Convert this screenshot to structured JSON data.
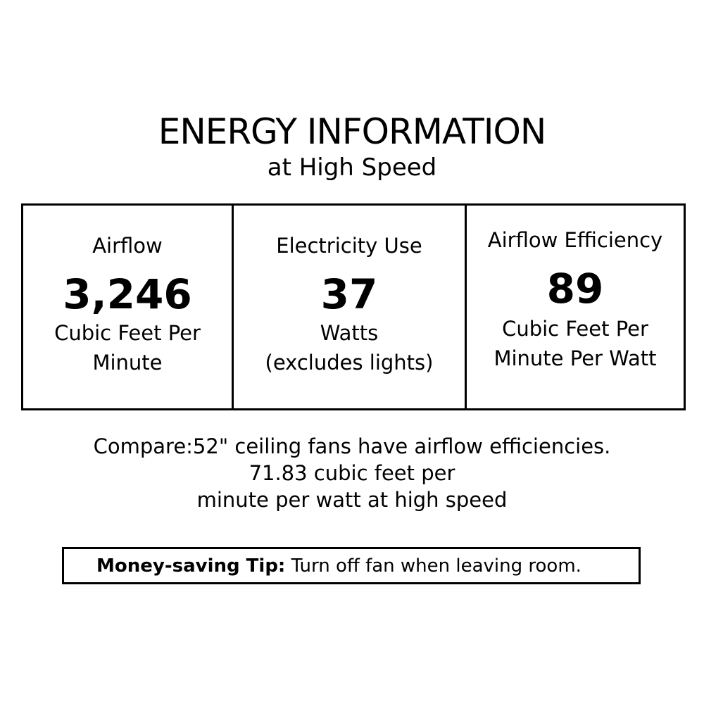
{
  "title": "ENERGY INFORMATION",
  "subtitle": "at High Speed",
  "columns": [
    {
      "label": "Airflow",
      "value": "3,246",
      "unit1": "Cubic Feet Per",
      "unit2": "Minute"
    },
    {
      "label": "Electricity Use",
      "value": "37",
      "unit1": "Watts",
      "unit2": "(excludes lights)"
    },
    {
      "label": "Airflow Efficiency",
      "value": "89",
      "unit1": "Cubic Feet Per",
      "unit2": "Minute Per Watt"
    }
  ],
  "compare": [
    "Compare:52\" ceiling fans have airflow efficiencies.",
    "71.83 cubic feet per",
    "minute per watt at high speed"
  ],
  "tip": {
    "label": "Money-saving Tip:",
    "text": " Turn off fan when leaving room."
  }
}
